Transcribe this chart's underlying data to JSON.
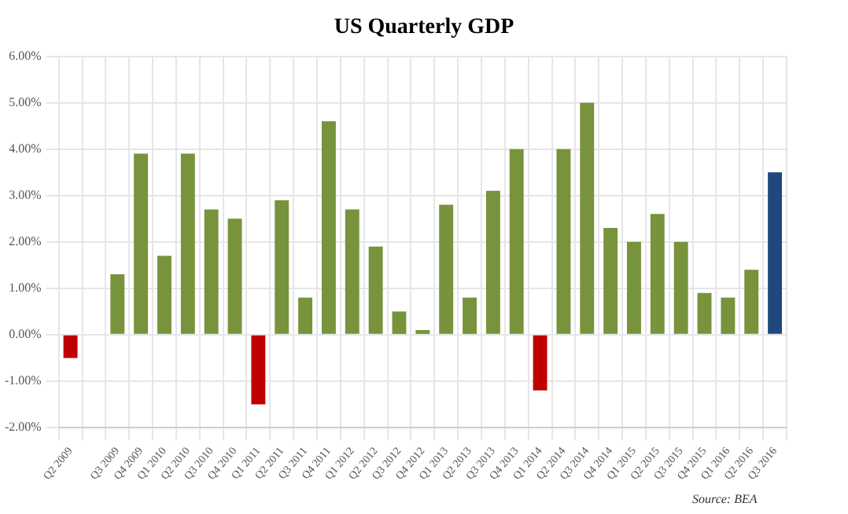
{
  "chart_data": {
    "type": "bar",
    "title": "US Quarterly GDP",
    "categories": [
      "Q2 2009",
      null,
      "Q3 2009",
      "Q4 2009",
      "Q1 2010",
      "Q2 2010",
      "Q3 2010",
      "Q4 2010",
      "Q1 2011",
      "Q2 2011",
      "Q3 2011",
      "Q4 2011",
      "Q1 2012",
      "Q2 2012",
      "Q3 2012",
      "Q4 2012",
      "Q1 2013",
      "Q2 2013",
      "Q3 2013",
      "Q4 2013",
      "Q1 2014",
      "Q2 2014",
      "Q3 2014",
      "Q4 2014",
      "Q1 2015",
      "Q2 2015",
      "Q3 2015",
      "Q4 2015",
      "Q1 2016",
      "Q2 2016",
      "Q3 2016"
    ],
    "values": [
      -0.5,
      null,
      1.3,
      3.9,
      1.7,
      3.9,
      2.7,
      2.5,
      -1.5,
      2.9,
      0.8,
      4.6,
      2.7,
      1.9,
      0.5,
      0.1,
      2.8,
      0.8,
      3.1,
      4.0,
      -1.2,
      4.0,
      5.0,
      2.3,
      2.0,
      2.6,
      2.0,
      0.9,
      0.8,
      1.4,
      3.5
    ],
    "colors": [
      "#c00000",
      null,
      "#77933c",
      "#77933c",
      "#77933c",
      "#77933c",
      "#77933c",
      "#77933c",
      "#c00000",
      "#77933c",
      "#77933c",
      "#77933c",
      "#77933c",
      "#77933c",
      "#77933c",
      "#77933c",
      "#77933c",
      "#77933c",
      "#77933c",
      "#77933c",
      "#c00000",
      "#77933c",
      "#77933c",
      "#77933c",
      "#77933c",
      "#77933c",
      "#77933c",
      "#77933c",
      "#77933c",
      "#77933c",
      "#1f497d"
    ],
    "ylim": [
      -2,
      6
    ],
    "yticks": [
      {
        "value": -2,
        "label": "-2.00%"
      },
      {
        "value": -1,
        "label": "-1.00%"
      },
      {
        "value": 0,
        "label": "0.00%"
      },
      {
        "value": 1,
        "label": "1.00%"
      },
      {
        "value": 2,
        "label": "2.00%"
      },
      {
        "value": 3,
        "label": "3.00%"
      },
      {
        "value": 4,
        "label": "4.00%"
      },
      {
        "value": 5,
        "label": "5.00%"
      },
      {
        "value": 6,
        "label": "6.00%"
      }
    ],
    "grid": true,
    "annotations": [
      "Source: BEA"
    ]
  }
}
